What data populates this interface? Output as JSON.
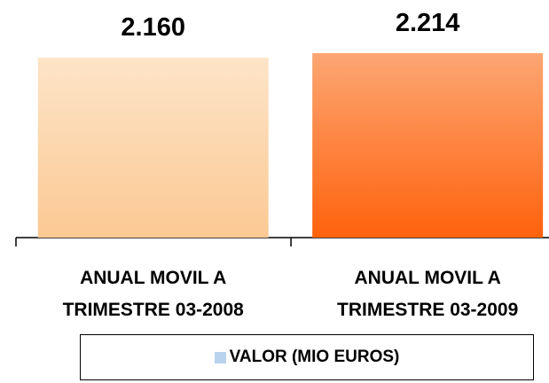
{
  "chart_data": {
    "type": "bar",
    "categories": [
      "ANUAL MOVIL A TRIMESTRE 03-2008",
      "ANUAL MOVIL A TRIMESTRE 03-2009"
    ],
    "series": [
      {
        "name": "VALOR (MIO EUROS)",
        "color": "#b9d3ef",
        "values": [
          2160,
          2214
        ],
        "value_labels": [
          "2.160",
          "2.214"
        ],
        "bar_gradients": [
          [
            "#fde4c8",
            "#fbc993"
          ],
          [
            "#fca673",
            "#ff620c"
          ]
        ]
      }
    ]
  }
}
